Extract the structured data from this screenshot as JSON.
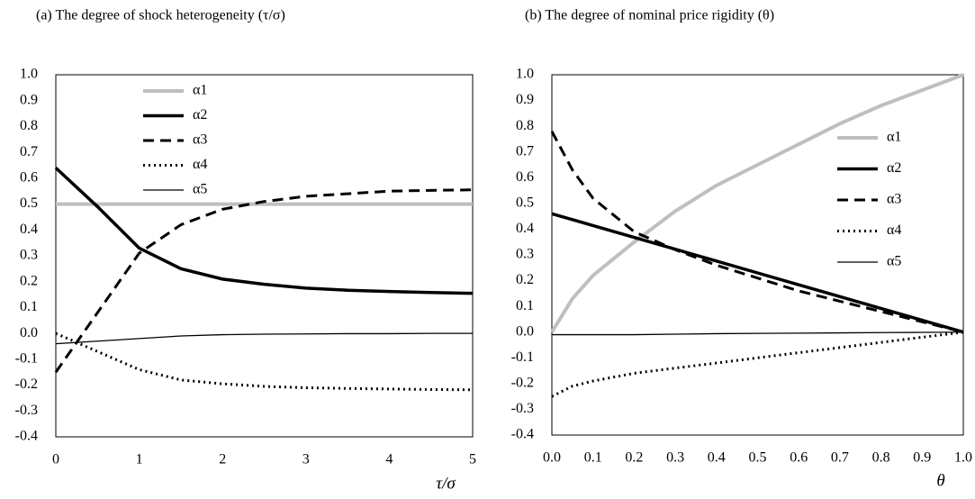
{
  "chart_data": [
    {
      "type": "line",
      "title": "(a)  The degree of shock heterogeneity (τ/σ)",
      "x_label": "τ/σ",
      "x": [
        0,
        0.5,
        1,
        1.5,
        2,
        2.5,
        3,
        3.5,
        4,
        4.5,
        5
      ],
      "series": [
        {
          "name": "α1",
          "color": "#bfbfbf",
          "values": [
            0.5,
            0.5,
            0.5,
            0.5,
            0.5,
            0.5,
            0.5,
            0.5,
            0.5,
            0.5,
            0.5
          ]
        },
        {
          "name": "α2",
          "color": "#000000",
          "values": [
            0.64,
            0.49,
            0.33,
            0.25,
            0.21,
            0.19,
            0.175,
            0.167,
            0.162,
            0.158,
            0.155
          ]
        },
        {
          "name": "α3",
          "color": "#000000",
          "values": [
            -0.15,
            0.08,
            0.31,
            0.42,
            0.48,
            0.51,
            0.53,
            0.54,
            0.55,
            0.553,
            0.555
          ]
        },
        {
          "name": "α4",
          "color": "#000000",
          "values": [
            0.0,
            -0.07,
            -0.14,
            -0.18,
            -0.195,
            -0.205,
            -0.21,
            -0.213,
            -0.215,
            -0.217,
            -0.218
          ]
        },
        {
          "name": "α5",
          "color": "#000000",
          "values": [
            -0.04,
            -0.03,
            -0.02,
            -0.01,
            -0.005,
            -0.003,
            -0.002,
            -0.001,
            -0.001,
            0,
            0
          ]
        }
      ],
      "xlim": [
        0,
        5
      ],
      "xticks": [
        0,
        1,
        2,
        3,
        4,
        5
      ],
      "ylim": [
        -0.4,
        1.0
      ],
      "yticks": [
        {
          "value": 1.0,
          "label": "1.0"
        },
        {
          "value": 0.9,
          "label": "0.9"
        },
        {
          "value": 0.8,
          "label": "0.8"
        },
        {
          "value": 0.7,
          "label": "0.7"
        },
        {
          "value": 0.6,
          "label": "0.6"
        },
        {
          "value": 0.5,
          "label": "0.5"
        },
        {
          "value": 0.4,
          "label": "0.4"
        },
        {
          "value": 0.3,
          "label": "0.3"
        },
        {
          "value": 0.2,
          "label": "0.2"
        },
        {
          "value": 0.1,
          "label": "0.1"
        },
        {
          "value": 0.0,
          "label": "0.0"
        },
        {
          "value": -0.1,
          "label": "-0.1"
        },
        {
          "value": -0.2,
          "label": "-0.2"
        },
        {
          "value": -0.3,
          "label": "-0.3"
        },
        {
          "value": -0.4,
          "label": "-0.4"
        }
      ],
      "negative_tick_color": "#ff0000",
      "grid": false,
      "legend": "upper left"
    },
    {
      "type": "line",
      "title": "(b) The degree of nominal price rigidity (θ)",
      "x_label": "θ",
      "x": [
        0,
        0.05,
        0.1,
        0.2,
        0.3,
        0.4,
        0.5,
        0.6,
        0.7,
        0.8,
        0.9,
        1.0
      ],
      "series": [
        {
          "name": "α1",
          "color": "#bfbfbf",
          "values": [
            0,
            0.13,
            0.22,
            0.35,
            0.47,
            0.57,
            0.65,
            0.73,
            0.81,
            0.88,
            0.94,
            1.0
          ]
        },
        {
          "name": "α2",
          "color": "#000000",
          "values": [
            0.46,
            0.437,
            0.414,
            0.368,
            0.322,
            0.276,
            0.23,
            0.184,
            0.138,
            0.092,
            0.046,
            0
          ]
        },
        {
          "name": "α3",
          "color": "#000000",
          "values": [
            0.78,
            0.63,
            0.52,
            0.39,
            0.32,
            0.26,
            0.21,
            0.16,
            0.12,
            0.08,
            0.04,
            0
          ]
        },
        {
          "name": "α4",
          "color": "#000000",
          "values": [
            -0.25,
            -0.21,
            -0.19,
            -0.16,
            -0.14,
            -0.12,
            -0.1,
            -0.08,
            -0.06,
            -0.04,
            -0.02,
            0
          ]
        },
        {
          "name": "α5",
          "color": "#000000",
          "values": [
            -0.01,
            -0.01,
            -0.01,
            -0.01,
            -0.008,
            -0.006,
            -0.005,
            -0.004,
            -0.003,
            -0.002,
            -0.001,
            0
          ]
        }
      ],
      "xlim": [
        0,
        1.0
      ],
      "xticks": [
        {
          "value": 0,
          "label": "0.0"
        },
        {
          "value": 0.1,
          "label": "0.1"
        },
        {
          "value": 0.2,
          "label": "0.2"
        },
        {
          "value": 0.3,
          "label": "0.3"
        },
        {
          "value": 0.4,
          "label": "0.4"
        },
        {
          "value": 0.5,
          "label": "0.5"
        },
        {
          "value": 0.6,
          "label": "0.6"
        },
        {
          "value": 0.7,
          "label": "0.7"
        },
        {
          "value": 0.8,
          "label": "0.8"
        },
        {
          "value": 0.9,
          "label": "0.9"
        },
        {
          "value": 1.0,
          "label": "1.0"
        }
      ],
      "ylim": [
        -0.4,
        1.0
      ],
      "yticks": [
        {
          "value": 1.0,
          "label": "1.0"
        },
        {
          "value": 0.9,
          "label": "0.9"
        },
        {
          "value": 0.8,
          "label": "0.8"
        },
        {
          "value": 0.7,
          "label": "0.7"
        },
        {
          "value": 0.6,
          "label": "0.6"
        },
        {
          "value": 0.5,
          "label": "0.5"
        },
        {
          "value": 0.4,
          "label": "0.4"
        },
        {
          "value": 0.3,
          "label": "0.3"
        },
        {
          "value": 0.2,
          "label": "0.2"
        },
        {
          "value": 0.1,
          "label": "0.1"
        },
        {
          "value": 0.0,
          "label": "0.0"
        },
        {
          "value": -0.1,
          "label": "-0.1"
        },
        {
          "value": -0.2,
          "label": "-0.2"
        },
        {
          "value": -0.3,
          "label": "-0.3"
        },
        {
          "value": -0.4,
          "label": "-0.4"
        }
      ],
      "grid": false,
      "legend": "center right"
    }
  ]
}
